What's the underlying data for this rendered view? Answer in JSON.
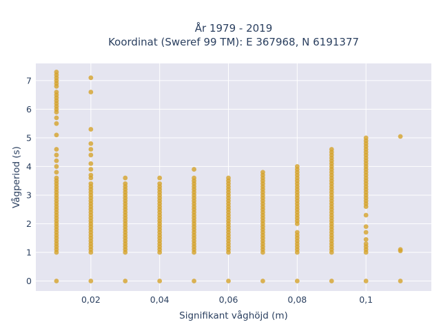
{
  "chart_data": {
    "type": "scatter",
    "title_line1": "År 1979 - 2019",
    "title_line2": "Koordinat (Sweref 99 TM): E 367968, N 6191377",
    "xlabel": "Signifikant våghöjd (m)",
    "ylabel": "Vågperiod (s)",
    "xlim": [
      0.004,
      0.119
    ],
    "ylim": [
      -0.35,
      7.6
    ],
    "x_ticks": [
      0.02,
      0.04,
      0.06,
      0.08,
      0.1
    ],
    "x_tick_labels": [
      "0,02",
      "0,04",
      "0,06",
      "0,08",
      "0,1"
    ],
    "y_ticks": [
      0,
      1,
      2,
      3,
      4,
      5,
      6,
      7
    ],
    "y_tick_labels": [
      "0",
      "1",
      "2",
      "3",
      "4",
      "5",
      "6",
      "7"
    ],
    "grid": true,
    "marker_color": "#d4a32a",
    "plot_bg_color": "#e5e5f0",
    "series": [
      {
        "x": 0.01,
        "values": [
          0,
          1.0,
          1.1,
          1.2,
          1.3,
          1.4,
          1.5,
          1.6,
          1.7,
          1.8,
          1.9,
          2.0,
          2.1,
          2.2,
          2.3,
          2.4,
          2.5,
          2.6,
          2.7,
          2.8,
          2.9,
          3.0,
          3.1,
          3.2,
          3.3,
          3.4,
          3.5,
          3.6,
          3.8,
          4.0,
          4.2,
          4.4,
          4.6,
          5.1,
          5.5,
          5.7,
          5.9,
          6.0,
          6.1,
          6.2,
          6.3,
          6.4,
          6.5,
          6.6,
          6.8,
          6.9,
          7.0,
          7.1,
          7.2,
          7.3
        ]
      },
      {
        "x": 0.02,
        "values": [
          0,
          1.0,
          1.1,
          1.2,
          1.3,
          1.4,
          1.5,
          1.6,
          1.7,
          1.8,
          1.9,
          2.0,
          2.1,
          2.2,
          2.3,
          2.4,
          2.5,
          2.6,
          2.7,
          2.8,
          2.9,
          3.0,
          3.1,
          3.2,
          3.3,
          3.4,
          3.6,
          3.7,
          3.9,
          4.1,
          4.4,
          4.6,
          4.8,
          5.3,
          6.6,
          7.1
        ]
      },
      {
        "x": 0.03,
        "values": [
          0,
          1.0,
          1.1,
          1.2,
          1.3,
          1.4,
          1.5,
          1.6,
          1.7,
          1.8,
          1.9,
          2.0,
          2.1,
          2.2,
          2.3,
          2.4,
          2.5,
          2.6,
          2.7,
          2.8,
          2.9,
          3.0,
          3.1,
          3.2,
          3.3,
          3.4,
          3.6
        ]
      },
      {
        "x": 0.04,
        "values": [
          0,
          1.0,
          1.1,
          1.2,
          1.3,
          1.4,
          1.5,
          1.6,
          1.7,
          1.8,
          1.9,
          2.0,
          2.1,
          2.2,
          2.3,
          2.4,
          2.5,
          2.6,
          2.7,
          2.8,
          2.9,
          3.0,
          3.1,
          3.2,
          3.3,
          3.4,
          3.6
        ]
      },
      {
        "x": 0.05,
        "values": [
          0,
          1.0,
          1.1,
          1.2,
          1.3,
          1.4,
          1.5,
          1.6,
          1.7,
          1.8,
          1.9,
          2.0,
          2.1,
          2.2,
          2.3,
          2.4,
          2.5,
          2.6,
          2.7,
          2.8,
          2.9,
          3.0,
          3.1,
          3.2,
          3.3,
          3.4,
          3.5,
          3.6,
          3.9
        ]
      },
      {
        "x": 0.06,
        "values": [
          0,
          1.0,
          1.1,
          1.2,
          1.3,
          1.4,
          1.5,
          1.6,
          1.7,
          1.8,
          1.9,
          2.0,
          2.1,
          2.2,
          2.3,
          2.4,
          2.5,
          2.6,
          2.7,
          2.8,
          2.9,
          3.0,
          3.1,
          3.2,
          3.3,
          3.4,
          3.5,
          3.6
        ]
      },
      {
        "x": 0.07,
        "values": [
          0,
          1.0,
          1.1,
          1.2,
          1.3,
          1.4,
          1.5,
          1.6,
          1.7,
          1.8,
          1.9,
          2.0,
          2.1,
          2.2,
          2.3,
          2.4,
          2.5,
          2.6,
          2.7,
          2.8,
          2.9,
          3.0,
          3.1,
          3.2,
          3.3,
          3.4,
          3.5,
          3.6,
          3.7,
          3.8
        ]
      },
      {
        "x": 0.08,
        "values": [
          0,
          1.0,
          1.1,
          1.2,
          1.3,
          1.4,
          1.5,
          1.6,
          1.7,
          2.0,
          2.1,
          2.2,
          2.3,
          2.4,
          2.5,
          2.6,
          2.7,
          2.8,
          2.9,
          3.0,
          3.1,
          3.2,
          3.3,
          3.4,
          3.5,
          3.6,
          3.7,
          3.8,
          3.9,
          4.0
        ]
      },
      {
        "x": 0.09,
        "values": [
          0,
          1.0,
          1.1,
          1.2,
          1.3,
          1.4,
          1.5,
          1.6,
          1.7,
          1.8,
          1.9,
          2.0,
          2.1,
          2.2,
          2.3,
          2.4,
          2.5,
          2.6,
          2.7,
          2.8,
          2.9,
          3.0,
          3.1,
          3.2,
          3.3,
          3.4,
          3.5,
          3.6,
          3.7,
          3.8,
          3.9,
          4.0,
          4.1,
          4.2,
          4.3,
          4.4,
          4.5,
          4.6
        ]
      },
      {
        "x": 0.1,
        "values": [
          0,
          1.0,
          1.1,
          1.2,
          1.3,
          1.45,
          1.7,
          1.9,
          2.3,
          2.6,
          2.7,
          2.8,
          2.9,
          3.0,
          3.1,
          3.2,
          3.3,
          3.4,
          3.5,
          3.6,
          3.7,
          3.8,
          3.9,
          4.0,
          4.1,
          4.2,
          4.3,
          4.4,
          4.5,
          4.6,
          4.7,
          4.8,
          4.9,
          5.0
        ]
      },
      {
        "x": 0.11,
        "values": [
          0,
          1.05,
          1.1,
          5.05
        ]
      }
    ]
  }
}
